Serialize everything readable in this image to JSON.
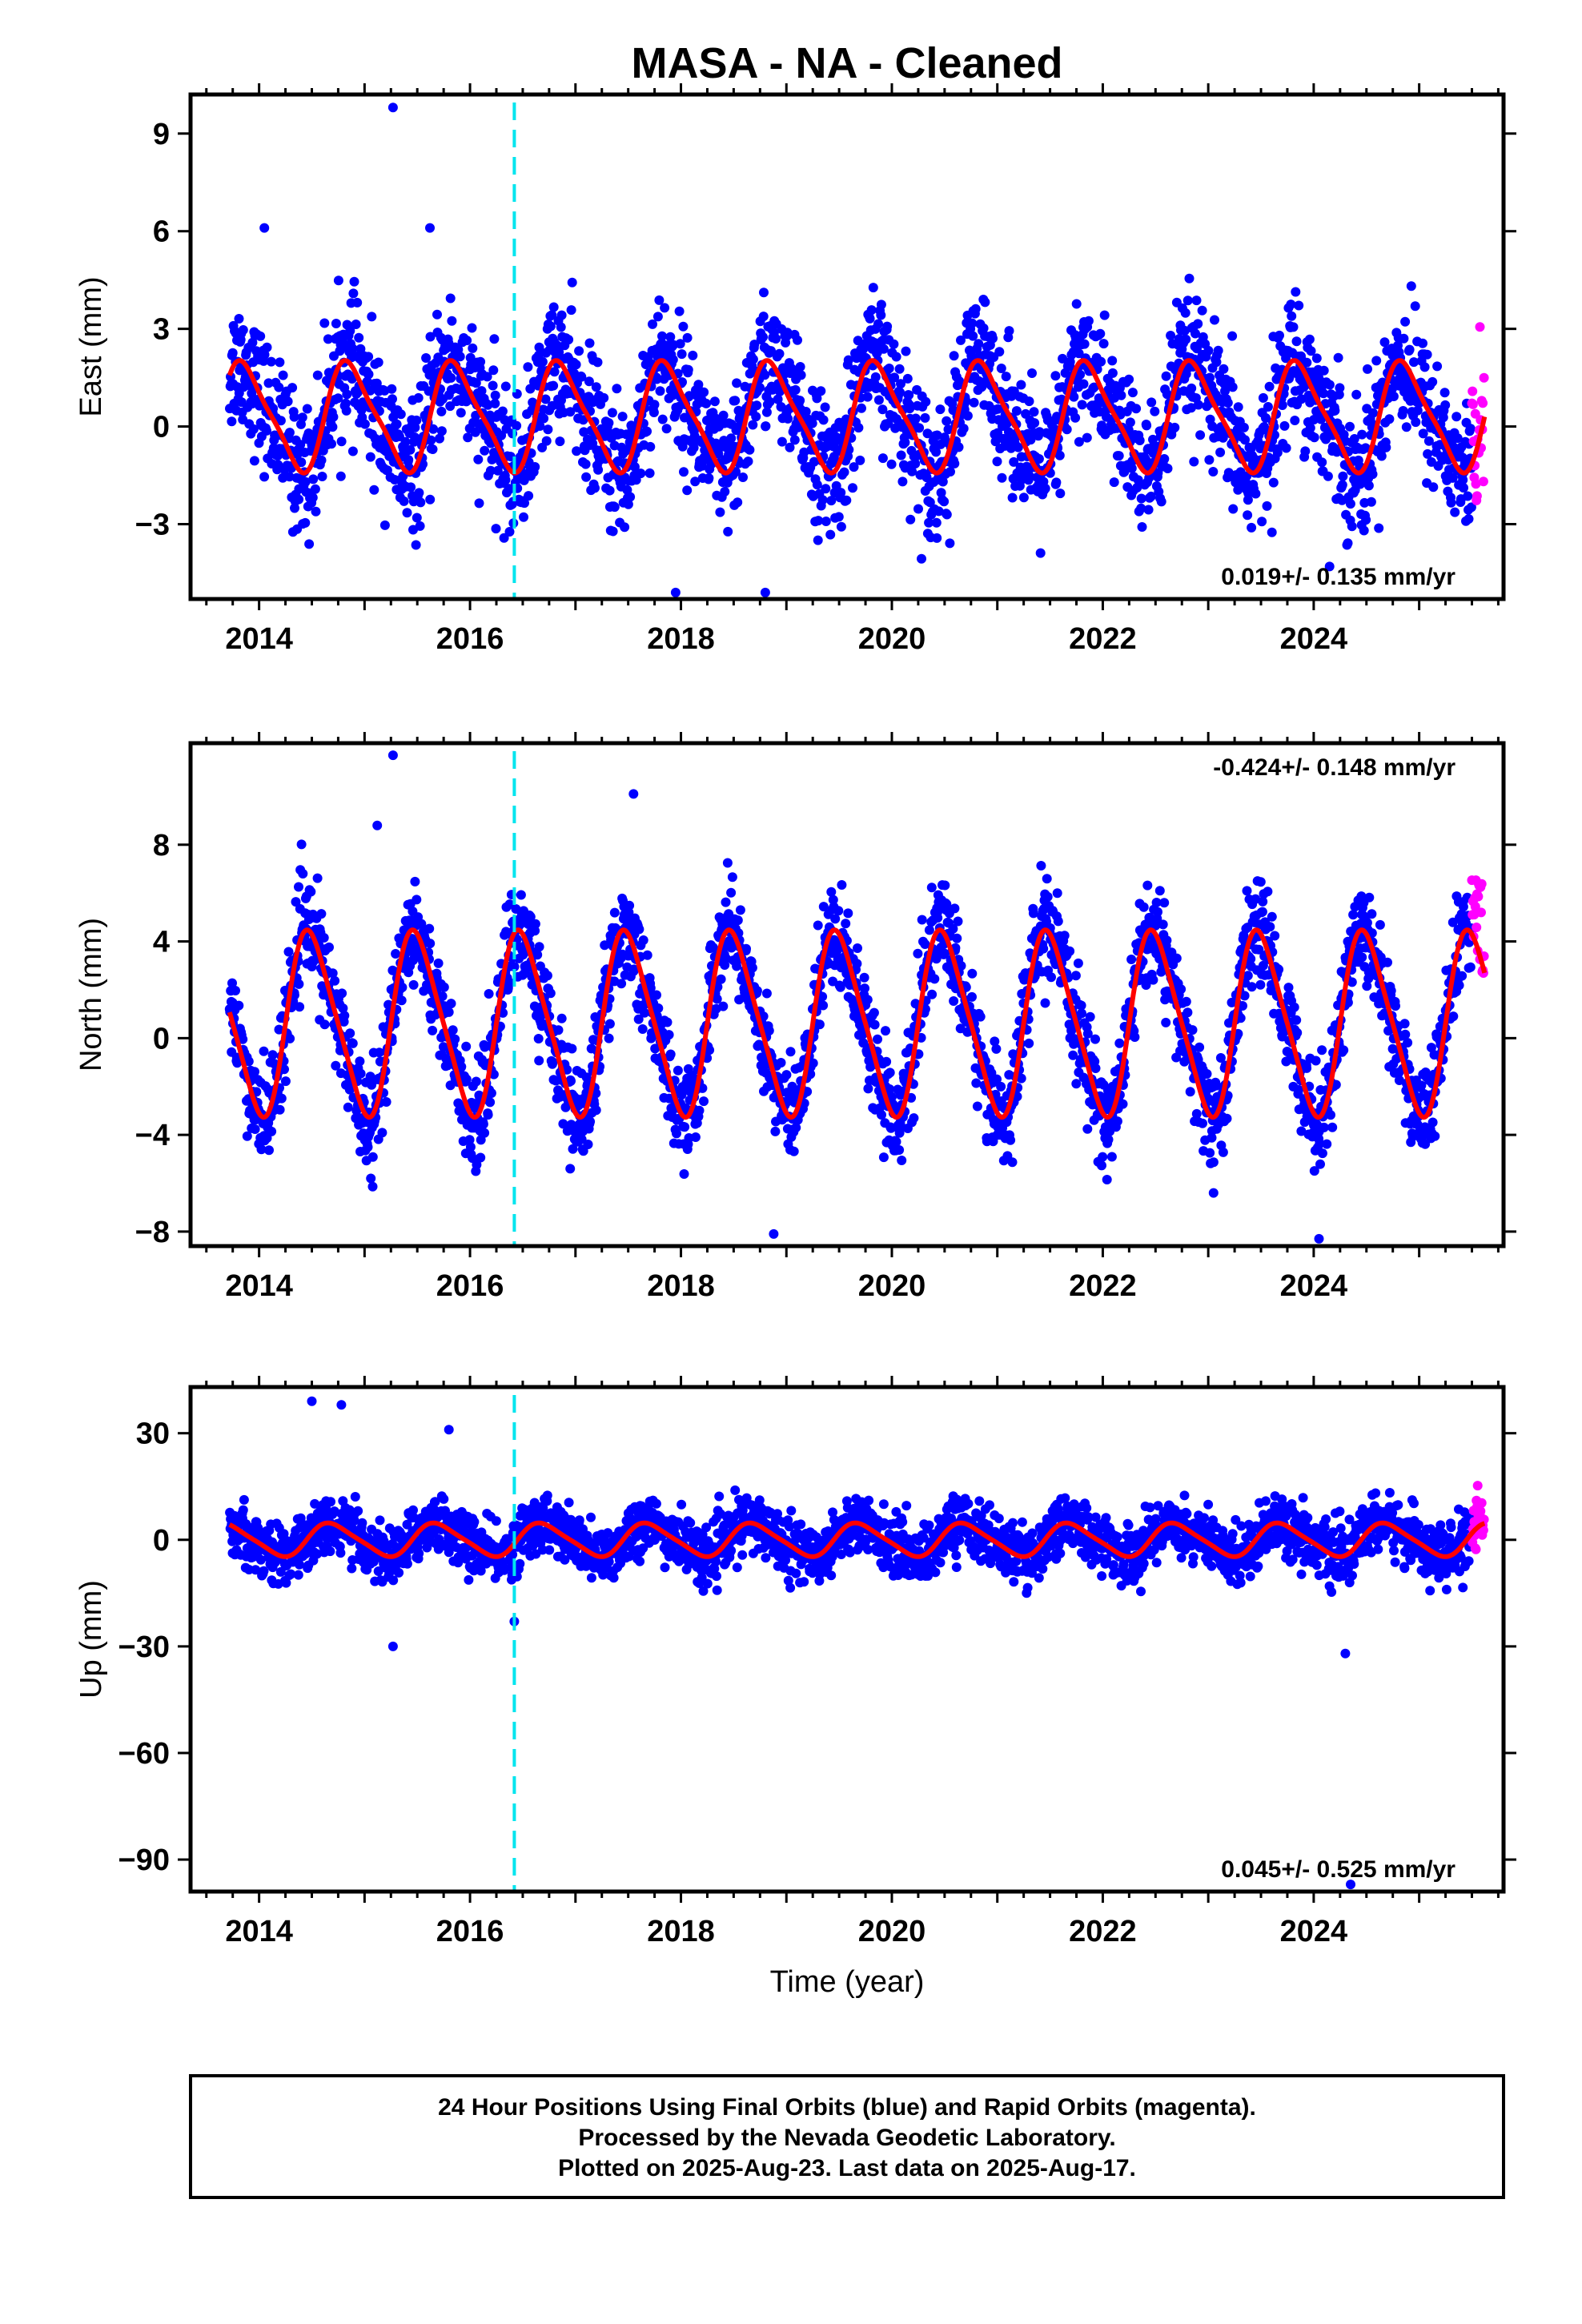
{
  "title": "MASA  - NA - Cleaned",
  "xlabel": "Time (year)",
  "footer": [
    "24 Hour Positions Using Final Orbits (blue) and Rapid Orbits (magenta).",
    "Processed by the Nevada Geodetic Laboratory.",
    "Plotted on 2025-Aug-23. Last data on 2025-Aug-17."
  ],
  "colors": {
    "final": "#0000ff",
    "rapid": "#ff00ff",
    "model": "#ff0000",
    "event": "#00e5ee"
  },
  "chart_data": [
    {
      "type": "scatter",
      "panel": "east",
      "ylabel": "East (mm)",
      "rate_text": "0.019+/- 0.135 mm/yr",
      "rate_position": "bottom-right",
      "xlim": [
        2013.35,
        2025.8
      ],
      "ylim": [
        -5.3,
        10.2
      ],
      "xticks": [
        2014,
        2016,
        2018,
        2020,
        2022,
        2024
      ],
      "yticks": [
        -3,
        0,
        3,
        6,
        9
      ],
      "event_x": 2016.42,
      "data_start": 2013.72,
      "rapid_start": 2025.5,
      "data_end": 2025.62,
      "model": {
        "annual_amplitude": 1.6,
        "annual_phase_year": 2013.62,
        "semiannual_amplitude": 0.35,
        "offset": 0.3,
        "scatter_sd": 1.0
      },
      "series": [
        {
          "name": "Final Orbits (blue)",
          "color": "#0000ff"
        },
        {
          "name": "Rapid Orbits (magenta)",
          "color": "#ff00ff"
        },
        {
          "name": "Model",
          "color": "#ff0000"
        }
      ],
      "outliers": [
        [
          2015.27,
          9.8
        ],
        [
          2014.05,
          6.1
        ],
        [
          2015.62,
          6.1
        ],
        [
          2018.8,
          -5.1
        ],
        [
          2017.95,
          -5.1
        ],
        [
          2024.15,
          -4.3
        ]
      ]
    },
    {
      "type": "scatter",
      "panel": "north",
      "ylabel": "North (mm)",
      "rate_text": "-0.424+/- 0.148 mm/yr",
      "rate_position": "top-right",
      "xlim": [
        2013.35,
        2025.8
      ],
      "ylim": [
        -8.6,
        12.2
      ],
      "xticks": [
        2014,
        2016,
        2018,
        2020,
        2022,
        2024
      ],
      "yticks": [
        -8,
        -4,
        0,
        4,
        8
      ],
      "event_x": 2016.42,
      "data_start": 2013.72,
      "rapid_start": 2025.5,
      "data_end": 2025.62,
      "model": {
        "annual_amplitude": 3.7,
        "annual_phase_year": 2013.25,
        "semiannual_amplitude": 0.6,
        "offset": 0.6,
        "scatter_sd": 1.0
      },
      "series": [
        {
          "name": "Final Orbits (blue)",
          "color": "#0000ff"
        },
        {
          "name": "Rapid Orbits (magenta)",
          "color": "#ff00ff"
        },
        {
          "name": "Model",
          "color": "#ff0000"
        }
      ],
      "outliers": [
        [
          2015.27,
          11.7
        ],
        [
          2015.12,
          8.8
        ],
        [
          2017.55,
          10.1
        ],
        [
          2018.88,
          -8.1
        ],
        [
          2024.05,
          -8.3
        ],
        [
          2016.95,
          -5.4
        ],
        [
          2023.05,
          -6.4
        ]
      ]
    },
    {
      "type": "scatter",
      "panel": "up",
      "ylabel": "Up (mm)",
      "rate_text": "0.045+/- 0.525 mm/yr",
      "rate_position": "bottom-right",
      "xlim": [
        2013.35,
        2025.8
      ],
      "ylim": [
        -99,
        43
      ],
      "xticks": [
        2014,
        2016,
        2018,
        2020,
        2022,
        2024
      ],
      "yticks": [
        -90,
        -60,
        -30,
        0,
        30
      ],
      "event_x": 2016.42,
      "data_start": 2013.72,
      "rapid_start": 2025.5,
      "data_end": 2025.62,
      "model": {
        "annual_amplitude": 4.5,
        "annual_phase_year": 2013.45,
        "semiannual_amplitude": 0.8,
        "offset": 0.0,
        "scatter_sd": 4.0
      },
      "series": [
        {
          "name": "Final Orbits (blue)",
          "color": "#0000ff"
        },
        {
          "name": "Rapid Orbits (magenta)",
          "color": "#ff00ff"
        },
        {
          "name": "Model",
          "color": "#ff0000"
        }
      ],
      "outliers": [
        [
          2014.5,
          39
        ],
        [
          2014.78,
          38
        ],
        [
          2015.27,
          -30
        ],
        [
          2016.42,
          -23
        ],
        [
          2024.3,
          -32
        ],
        [
          2024.35,
          -97
        ],
        [
          2015.8,
          31
        ]
      ]
    }
  ]
}
